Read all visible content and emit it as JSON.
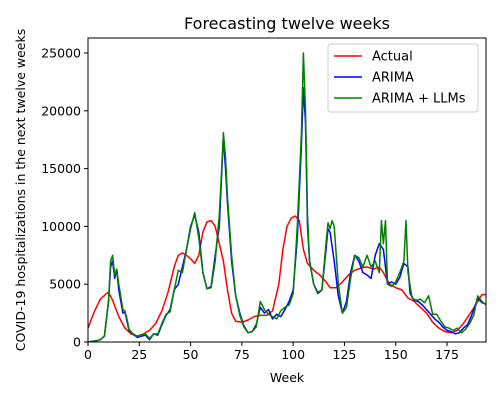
{
  "chart_data": {
    "type": "line",
    "title": "Forecasting twelve weeks",
    "xlabel": "Week",
    "ylabel": "COVID-19 hospitalizations in the next twelve weeks",
    "xlim": [
      0,
      194
    ],
    "ylim": [
      0,
      26300
    ],
    "xticks": [
      0,
      25,
      50,
      75,
      100,
      125,
      150,
      175
    ],
    "yticks": [
      0,
      5000,
      10000,
      15000,
      20000,
      25000
    ],
    "grid": false,
    "legend_position": "top-right",
    "series": [
      {
        "name": "Actual",
        "color": "#ff0000",
        "points": [
          [
            0,
            1200
          ],
          [
            3,
            2600
          ],
          [
            6,
            3700
          ],
          [
            9,
            4200
          ],
          [
            10,
            4300
          ],
          [
            12,
            3600
          ],
          [
            15,
            2200
          ],
          [
            18,
            1200
          ],
          [
            21,
            700
          ],
          [
            24,
            500
          ],
          [
            27,
            700
          ],
          [
            30,
            1000
          ],
          [
            33,
            1600
          ],
          [
            36,
            2700
          ],
          [
            39,
            4300
          ],
          [
            42,
            6500
          ],
          [
            44,
            7500
          ],
          [
            46,
            7700
          ],
          [
            48,
            7500
          ],
          [
            50,
            7200
          ],
          [
            52,
            6800
          ],
          [
            54,
            7500
          ],
          [
            56,
            9500
          ],
          [
            58,
            10400
          ],
          [
            60,
            10500
          ],
          [
            62,
            10000
          ],
          [
            64,
            8500
          ],
          [
            66,
            7000
          ],
          [
            68,
            4500
          ],
          [
            70,
            2500
          ],
          [
            72,
            1800
          ],
          [
            75,
            1700
          ],
          [
            78,
            1900
          ],
          [
            81,
            2200
          ],
          [
            84,
            2300
          ],
          [
            87,
            2300
          ],
          [
            90,
            2700
          ],
          [
            93,
            5000
          ],
          [
            95,
            8000
          ],
          [
            97,
            10000
          ],
          [
            99,
            10700
          ],
          [
            101,
            10900
          ],
          [
            103,
            10500
          ],
          [
            105,
            8000
          ],
          [
            107,
            6800
          ],
          [
            110,
            6200
          ],
          [
            113,
            5800
          ],
          [
            116,
            5200
          ],
          [
            118,
            4700
          ],
          [
            121,
            4700
          ],
          [
            124,
            5200
          ],
          [
            127,
            5800
          ],
          [
            130,
            6200
          ],
          [
            133,
            6400
          ],
          [
            136,
            6500
          ],
          [
            139,
            6300
          ],
          [
            142,
            6500
          ],
          [
            144,
            6000
          ],
          [
            147,
            5000
          ],
          [
            150,
            4700
          ],
          [
            153,
            4500
          ],
          [
            156,
            3800
          ],
          [
            159,
            3500
          ],
          [
            162,
            3000
          ],
          [
            165,
            2500
          ],
          [
            168,
            1700
          ],
          [
            171,
            1200
          ],
          [
            174,
            900
          ],
          [
            177,
            800
          ],
          [
            180,
            1000
          ],
          [
            183,
            1600
          ],
          [
            186,
            2400
          ],
          [
            189,
            3200
          ],
          [
            192,
            4100
          ],
          [
            194,
            4100
          ]
        ]
      },
      {
        "name": "ARIMA",
        "color": "#0000ff",
        "points": [
          [
            0,
            0
          ],
          [
            4,
            100
          ],
          [
            6,
            200
          ],
          [
            8,
            500
          ],
          [
            10,
            3500
          ],
          [
            11,
            6500
          ],
          [
            12,
            7000
          ],
          [
            13,
            5500
          ],
          [
            14,
            6300
          ],
          [
            15,
            4500
          ],
          [
            17,
            2500
          ],
          [
            18,
            2600
          ],
          [
            19,
            1800
          ],
          [
            20,
            1000
          ],
          [
            22,
            700
          ],
          [
            24,
            400
          ],
          [
            26,
            500
          ],
          [
            28,
            600
          ],
          [
            30,
            200
          ],
          [
            32,
            700
          ],
          [
            34,
            600
          ],
          [
            36,
            1500
          ],
          [
            38,
            2300
          ],
          [
            40,
            2800
          ],
          [
            42,
            4500
          ],
          [
            44,
            5000
          ],
          [
            46,
            6500
          ],
          [
            48,
            8000
          ],
          [
            50,
            10000
          ],
          [
            52,
            11000
          ],
          [
            54,
            9500
          ],
          [
            56,
            6000
          ],
          [
            58,
            4600
          ],
          [
            60,
            4800
          ],
          [
            62,
            7500
          ],
          [
            64,
            10000
          ],
          [
            65,
            14000
          ],
          [
            66,
            17800
          ],
          [
            67,
            15000
          ],
          [
            68,
            12000
          ],
          [
            70,
            7000
          ],
          [
            72,
            4000
          ],
          [
            74,
            2500
          ],
          [
            76,
            1400
          ],
          [
            78,
            800
          ],
          [
            80,
            900
          ],
          [
            82,
            1500
          ],
          [
            84,
            3000
          ],
          [
            86,
            2500
          ],
          [
            88,
            2800
          ],
          [
            90,
            2000
          ],
          [
            92,
            2400
          ],
          [
            94,
            2200
          ],
          [
            96,
            2800
          ],
          [
            98,
            3500
          ],
          [
            100,
            4500
          ],
          [
            102,
            9000
          ],
          [
            104,
            17000
          ],
          [
            105,
            22000
          ],
          [
            106,
            19000
          ],
          [
            107,
            10000
          ],
          [
            108,
            7000
          ],
          [
            110,
            5000
          ],
          [
            112,
            4200
          ],
          [
            114,
            4500
          ],
          [
            116,
            8000
          ],
          [
            117,
            9800
          ],
          [
            118,
            9500
          ],
          [
            120,
            7000
          ],
          [
            122,
            4000
          ],
          [
            124,
            2500
          ],
          [
            126,
            3500
          ],
          [
            128,
            6000
          ],
          [
            130,
            7500
          ],
          [
            132,
            7000
          ],
          [
            134,
            6000
          ],
          [
            136,
            5800
          ],
          [
            138,
            5500
          ],
          [
            140,
            7500
          ],
          [
            142,
            8500
          ],
          [
            144,
            8000
          ],
          [
            146,
            5000
          ],
          [
            148,
            5200
          ],
          [
            150,
            5000
          ],
          [
            152,
            5600
          ],
          [
            154,
            6800
          ],
          [
            156,
            6500
          ],
          [
            157,
            4200
          ],
          [
            159,
            3600
          ],
          [
            161,
            3500
          ],
          [
            163,
            3200
          ],
          [
            165,
            2800
          ],
          [
            167,
            2400
          ],
          [
            169,
            2000
          ],
          [
            171,
            1700
          ],
          [
            173,
            1300
          ],
          [
            175,
            1000
          ],
          [
            177,
            900
          ],
          [
            179,
            700
          ],
          [
            181,
            800
          ],
          [
            183,
            1200
          ],
          [
            185,
            1500
          ],
          [
            187,
            2300
          ],
          [
            190,
            3800
          ],
          [
            192,
            3400
          ],
          [
            194,
            3300
          ]
        ]
      },
      {
        "name": "ARIMA + LLMs",
        "color": "#008000",
        "points": [
          [
            0,
            0
          ],
          [
            4,
            100
          ],
          [
            6,
            200
          ],
          [
            8,
            500
          ],
          [
            10,
            3500
          ],
          [
            11,
            7000
          ],
          [
            12,
            7500
          ],
          [
            13,
            5800
          ],
          [
            14,
            6300
          ],
          [
            15,
            5000
          ],
          [
            17,
            2800
          ],
          [
            18,
            2700
          ],
          [
            19,
            2000
          ],
          [
            20,
            1100
          ],
          [
            22,
            700
          ],
          [
            24,
            500
          ],
          [
            26,
            600
          ],
          [
            28,
            700
          ],
          [
            30,
            300
          ],
          [
            32,
            700
          ],
          [
            34,
            700
          ],
          [
            36,
            1600
          ],
          [
            38,
            2400
          ],
          [
            40,
            2600
          ],
          [
            42,
            4500
          ],
          [
            44,
            6200
          ],
          [
            46,
            6000
          ],
          [
            48,
            8000
          ],
          [
            50,
            9800
          ],
          [
            52,
            11200
          ],
          [
            54,
            9000
          ],
          [
            56,
            6000
          ],
          [
            58,
            4600
          ],
          [
            60,
            4700
          ],
          [
            62,
            7000
          ],
          [
            64,
            11000
          ],
          [
            65,
            14500
          ],
          [
            66,
            18100
          ],
          [
            67,
            16000
          ],
          [
            68,
            12500
          ],
          [
            70,
            7500
          ],
          [
            72,
            4000
          ],
          [
            74,
            2300
          ],
          [
            76,
            1300
          ],
          [
            78,
            800
          ],
          [
            80,
            900
          ],
          [
            82,
            1300
          ],
          [
            84,
            3500
          ],
          [
            86,
            2800
          ],
          [
            88,
            2400
          ],
          [
            90,
            2200
          ],
          [
            92,
            2000
          ],
          [
            94,
            2700
          ],
          [
            96,
            3000
          ],
          [
            98,
            3200
          ],
          [
            100,
            4200
          ],
          [
            102,
            10000
          ],
          [
            104,
            18000
          ],
          [
            105,
            25000
          ],
          [
            106,
            20000
          ],
          [
            107,
            11000
          ],
          [
            108,
            7000
          ],
          [
            110,
            5000
          ],
          [
            112,
            4300
          ],
          [
            114,
            4500
          ],
          [
            116,
            8500
          ],
          [
            117,
            10300
          ],
          [
            118,
            9800
          ],
          [
            119,
            10500
          ],
          [
            120,
            10000
          ],
          [
            122,
            5000
          ],
          [
            124,
            2500
          ],
          [
            126,
            3000
          ],
          [
            128,
            5500
          ],
          [
            130,
            7500
          ],
          [
            132,
            7300
          ],
          [
            134,
            6500
          ],
          [
            136,
            7500
          ],
          [
            138,
            6500
          ],
          [
            140,
            7000
          ],
          [
            142,
            6000
          ],
          [
            143,
            10500
          ],
          [
            144,
            8500
          ],
          [
            145,
            10500
          ],
          [
            146,
            5000
          ],
          [
            148,
            4800
          ],
          [
            150,
            5200
          ],
          [
            152,
            6000
          ],
          [
            154,
            7000
          ],
          [
            155,
            10500
          ],
          [
            156,
            6000
          ],
          [
            158,
            3800
          ],
          [
            160,
            3600
          ],
          [
            162,
            3700
          ],
          [
            164,
            3400
          ],
          [
            166,
            4000
          ],
          [
            168,
            2400
          ],
          [
            170,
            2400
          ],
          [
            172,
            1800
          ],
          [
            174,
            1300
          ],
          [
            176,
            1200
          ],
          [
            178,
            1000
          ],
          [
            180,
            1200
          ],
          [
            182,
            800
          ],
          [
            184,
            1100
          ],
          [
            186,
            1600
          ],
          [
            188,
            2300
          ],
          [
            190,
            4000
          ],
          [
            192,
            3500
          ],
          [
            194,
            3200
          ]
        ]
      }
    ]
  }
}
